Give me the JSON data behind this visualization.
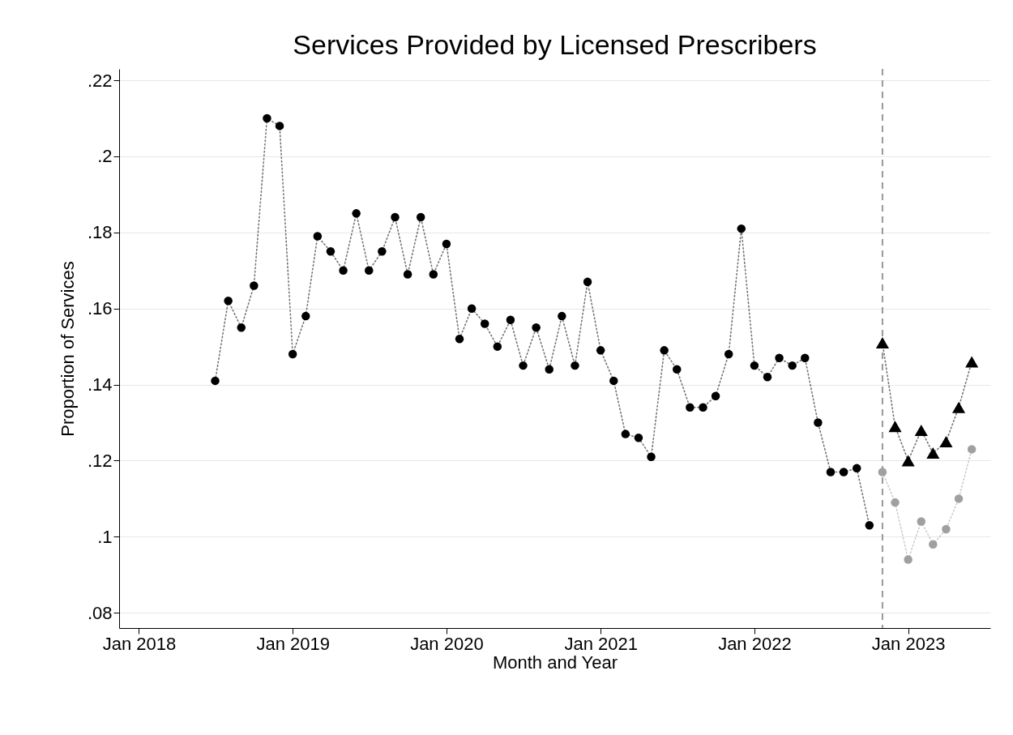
{
  "chart_data": {
    "type": "line",
    "title": "Services Provided by Licensed Prescribers",
    "xlabel": "Month and Year",
    "ylabel": "Proportion of Services",
    "xlim": [
      "2017-11-15",
      "2023-07-15"
    ],
    "ylim": [
      0.076,
      0.223
    ],
    "xticks": [
      {
        "value": "2018-01",
        "label": "Jan 2018"
      },
      {
        "value": "2019-01",
        "label": "Jan 2019"
      },
      {
        "value": "2020-01",
        "label": "Jan 2020"
      },
      {
        "value": "2021-01",
        "label": "Jan 2021"
      },
      {
        "value": "2022-01",
        "label": "Jan 2022"
      },
      {
        "value": "2023-01",
        "label": "Jan 2023"
      }
    ],
    "yticks": [
      {
        "value": 0.08,
        "label": ".08"
      },
      {
        "value": 0.1,
        "label": ".1"
      },
      {
        "value": 0.12,
        "label": ".12"
      },
      {
        "value": 0.14,
        "label": ".14"
      },
      {
        "value": 0.16,
        "label": ".16"
      },
      {
        "value": 0.18,
        "label": ".18"
      },
      {
        "value": 0.2,
        "label": ".2"
      },
      {
        "value": 0.22,
        "label": ".22"
      }
    ],
    "grid": "y",
    "line_style": "dotted",
    "series": [
      {
        "color": "#000000",
        "marker": "circle",
        "x": [
          "2018-07",
          "2018-08",
          "2018-09",
          "2018-10",
          "2018-11",
          "2018-12",
          "2019-01",
          "2019-02",
          "2019-03",
          "2019-04",
          "2019-05",
          "2019-06",
          "2019-07",
          "2019-08",
          "2019-09",
          "2019-10",
          "2019-11",
          "2019-12",
          "2020-01",
          "2020-02",
          "2020-03",
          "2020-04",
          "2020-05",
          "2020-06",
          "2020-07",
          "2020-08",
          "2020-09",
          "2020-10",
          "2020-11",
          "2020-12",
          "2021-01",
          "2021-02",
          "2021-03",
          "2021-04",
          "2021-05",
          "2021-06",
          "2021-07",
          "2021-08",
          "2021-09",
          "2021-10",
          "2021-11",
          "2021-12",
          "2022-01",
          "2022-02",
          "2022-03",
          "2022-04",
          "2022-05",
          "2022-06",
          "2022-07",
          "2022-08",
          "2022-09",
          "2022-10"
        ],
        "values": [
          0.141,
          0.162,
          0.155,
          0.166,
          0.21,
          0.208,
          0.148,
          0.158,
          0.179,
          0.175,
          0.17,
          0.185,
          0.17,
          0.175,
          0.184,
          0.169,
          0.184,
          0.169,
          0.177,
          0.152,
          0.16,
          0.156,
          0.15,
          0.157,
          0.145,
          0.155,
          0.144,
          0.158,
          0.145,
          0.167,
          0.149,
          0.141,
          0.127,
          0.126,
          0.121,
          0.149,
          0.144,
          0.134,
          0.134,
          0.137,
          0.148,
          0.181,
          0.145,
          0.142,
          0.147,
          0.145,
          0.147,
          0.13,
          0.117,
          0.117,
          0.118,
          0.103
        ]
      },
      {
        "color": "#000000",
        "marker": "triangle",
        "x": [
          "2022-11",
          "2022-12",
          "2023-01",
          "2023-02",
          "2023-03",
          "2023-04",
          "2023-05",
          "2023-06"
        ],
        "values": [
          0.151,
          0.129,
          0.12,
          0.128,
          0.122,
          0.125,
          0.134,
          0.146
        ]
      },
      {
        "color": "#a0a0a0",
        "marker": "circle",
        "x": [
          "2022-11",
          "2022-12",
          "2023-01",
          "2023-02",
          "2023-03",
          "2023-04",
          "2023-05",
          "2023-06"
        ],
        "values": [
          0.117,
          0.109,
          0.094,
          0.104,
          0.098,
          0.102,
          0.11,
          0.123
        ]
      }
    ],
    "ref_lines": [
      {
        "axis": "x",
        "value": "2022-11",
        "color": "#999999",
        "line_style": "dashed"
      }
    ]
  }
}
